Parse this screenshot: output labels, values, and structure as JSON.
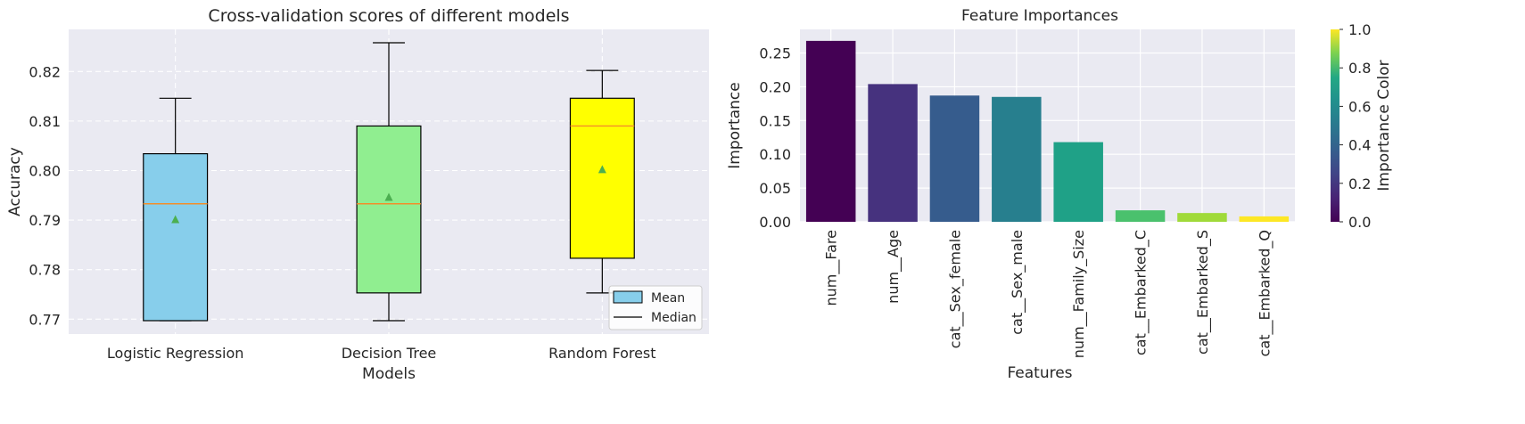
{
  "chart_data": [
    {
      "type": "box",
      "title": "Cross-validation scores of different models",
      "xlabel": "Models",
      "ylabel": "Accuracy",
      "ylim": [
        0.767,
        0.8285
      ],
      "yticks": [
        0.77,
        0.78,
        0.79,
        0.8,
        0.81,
        0.82
      ],
      "ytick_labels": [
        "0.77",
        "0.78",
        "0.79",
        "0.80",
        "0.81",
        "0.82"
      ],
      "grid": true,
      "grid_style": "dashed",
      "legend_position": "lower-right",
      "legend": [
        {
          "label": "Mean",
          "kind": "patch"
        },
        {
          "label": "Median",
          "kind": "line"
        }
      ],
      "boxes": [
        {
          "category": "Logistic Regression",
          "whisker_low": 0.7697,
          "q1": 0.7697,
          "median": 0.7933,
          "q3": 0.8034,
          "whisker_high": 0.8146,
          "mean": 0.7901,
          "color": "#87CEEB"
        },
        {
          "category": "Decision Tree",
          "whisker_low": 0.7697,
          "q1": 0.7753,
          "median": 0.7933,
          "q3": 0.809,
          "whisker_high": 0.8258,
          "mean": 0.7946,
          "color": "#90EE90"
        },
        {
          "category": "Random Forest",
          "whisker_low": 0.7753,
          "q1": 0.7823,
          "median": 0.809,
          "q3": 0.8146,
          "whisker_high": 0.8202,
          "mean": 0.8002,
          "color": "#FFFF00"
        }
      ],
      "median_color": "#F28E2B",
      "mean_marker_color": "#4CAF50"
    },
    {
      "type": "bar",
      "title": "Feature Importances",
      "xlabel": "Features",
      "ylabel": "Importance",
      "ylim": [
        0,
        0.285
      ],
      "yticks": [
        0.0,
        0.05,
        0.1,
        0.15,
        0.2,
        0.25
      ],
      "ytick_labels": [
        "0.00",
        "0.05",
        "0.10",
        "0.15",
        "0.20",
        "0.25"
      ],
      "categories": [
        "num__Fare",
        "num__Age",
        "cat__Sex_female",
        "cat__Sex_male",
        "num__Family_Size",
        "cat__Embarked_C",
        "cat__Embarked_S",
        "cat__Embarked_Q"
      ],
      "values": [
        0.268,
        0.204,
        0.187,
        0.185,
        0.118,
        0.017,
        0.013,
        0.008
      ],
      "bar_colors": [
        "#440154",
        "#46327E",
        "#365C8D",
        "#277F8E",
        "#1FA187",
        "#4AC16D",
        "#A0DA39",
        "#FDE725"
      ],
      "colorbar": {
        "label": "Importance Color",
        "colormap": "viridis",
        "range": [
          0.0,
          1.0
        ],
        "ticks": [
          0.0,
          0.2,
          0.4,
          0.6,
          0.8,
          1.0
        ],
        "tick_labels": [
          "0.0",
          "0.2",
          "0.4",
          "0.6",
          "0.8",
          "1.0"
        ]
      },
      "grid": true
    }
  ]
}
